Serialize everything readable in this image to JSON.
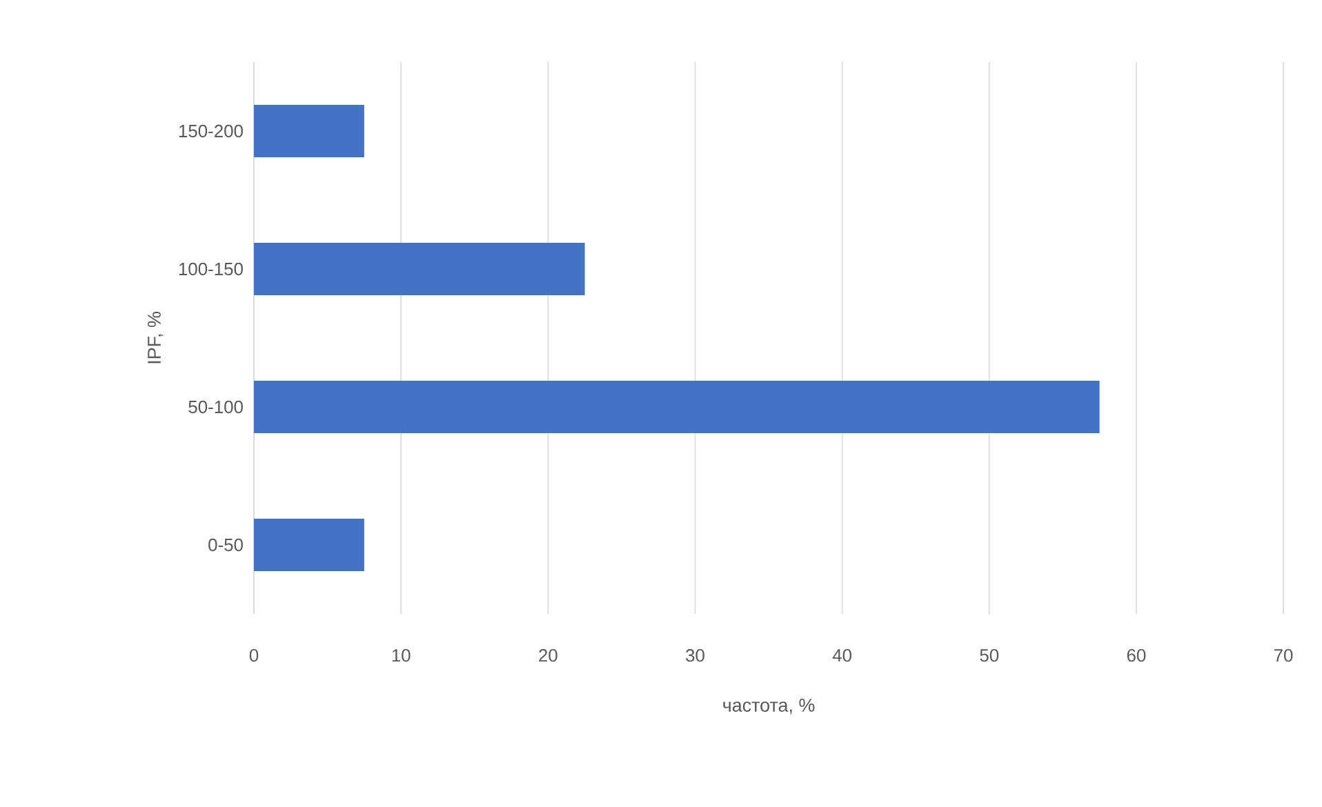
{
  "chart_data": {
    "type": "bar",
    "orientation": "horizontal",
    "xlabel": "частота, %",
    "ylabel": "IPF, %",
    "categories": [
      "150-200",
      "100-150",
      "50-100",
      "0-50"
    ],
    "values": [
      7.5,
      22.5,
      57.5,
      7.5
    ],
    "color": "#4472c4",
    "xlim": [
      0,
      70
    ],
    "xticks": [
      0,
      10,
      20,
      30,
      40,
      50,
      60,
      70
    ],
    "grid": "x"
  }
}
